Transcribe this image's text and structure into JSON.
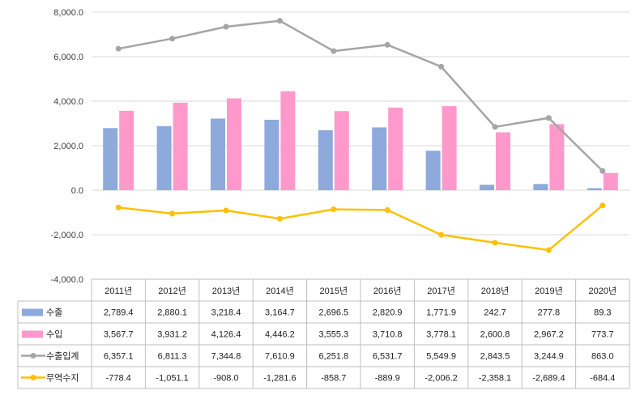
{
  "chart_data": {
    "type": "bar",
    "categories": [
      "2011년",
      "2012년",
      "2013년",
      "2014년",
      "2015년",
      "2016년",
      "2017년",
      "2018년",
      "2019년",
      "2020년"
    ],
    "y_ticks": [
      "8,000.0",
      "6,000.0",
      "4,000.0",
      "2,000.0",
      "0.0",
      "-2,000.0",
      "-4,000.0"
    ],
    "ylim": [
      -4000,
      8000
    ],
    "grid": true,
    "legend": "data-table-left",
    "series": [
      {
        "name": "수출",
        "kind": "bar",
        "color": "#8EA9DB",
        "values": [
          2789.4,
          2880.1,
          3218.4,
          3164.7,
          2696.5,
          2820.9,
          1771.9,
          242.7,
          277.8,
          89.3
        ],
        "labels": [
          "2,789.4",
          "2,880.1",
          "3,218.4",
          "3,164.7",
          "2,696.5",
          "2,820.9",
          "1,771.9",
          "242.7",
          "277.8",
          "89.3"
        ]
      },
      {
        "name": "수입",
        "kind": "bar",
        "color": "#FF99CC",
        "values": [
          3567.7,
          3931.2,
          4126.4,
          4446.2,
          3555.3,
          3710.8,
          3778.1,
          2600.8,
          2967.2,
          773.7
        ],
        "labels": [
          "3,567.7",
          "3,931.2",
          "4,126.4",
          "4,446.2",
          "3,555.3",
          "3,710.8",
          "3,778.1",
          "2,600.8",
          "2,967.2",
          "773.7"
        ]
      },
      {
        "name": "수출입계",
        "kind": "line",
        "color": "#A5A5A5",
        "values": [
          6357.1,
          6811.3,
          7344.8,
          7610.9,
          6251.8,
          6531.7,
          5549.9,
          2843.5,
          3244.9,
          863.0
        ],
        "labels": [
          "6,357.1",
          "6,811.3",
          "7,344.8",
          "7,610.9",
          "6,251.8",
          "6,531.7",
          "5,549.9",
          "2,843.5",
          "3,244.9",
          "863.0"
        ]
      },
      {
        "name": "무역수지",
        "kind": "line",
        "color": "#FFC000",
        "values": [
          -778.4,
          -1051.1,
          -908.0,
          -1281.6,
          -858.7,
          -889.9,
          -2006.2,
          -2358.1,
          -2689.4,
          -684.4
        ],
        "labels": [
          "-778.4",
          "-1,051.1",
          "-908.0",
          "-1,281.6",
          "-858.7",
          "-889.9",
          "-2,006.2",
          "-2,358.1",
          "-2,689.4",
          "-684.4"
        ]
      }
    ]
  }
}
